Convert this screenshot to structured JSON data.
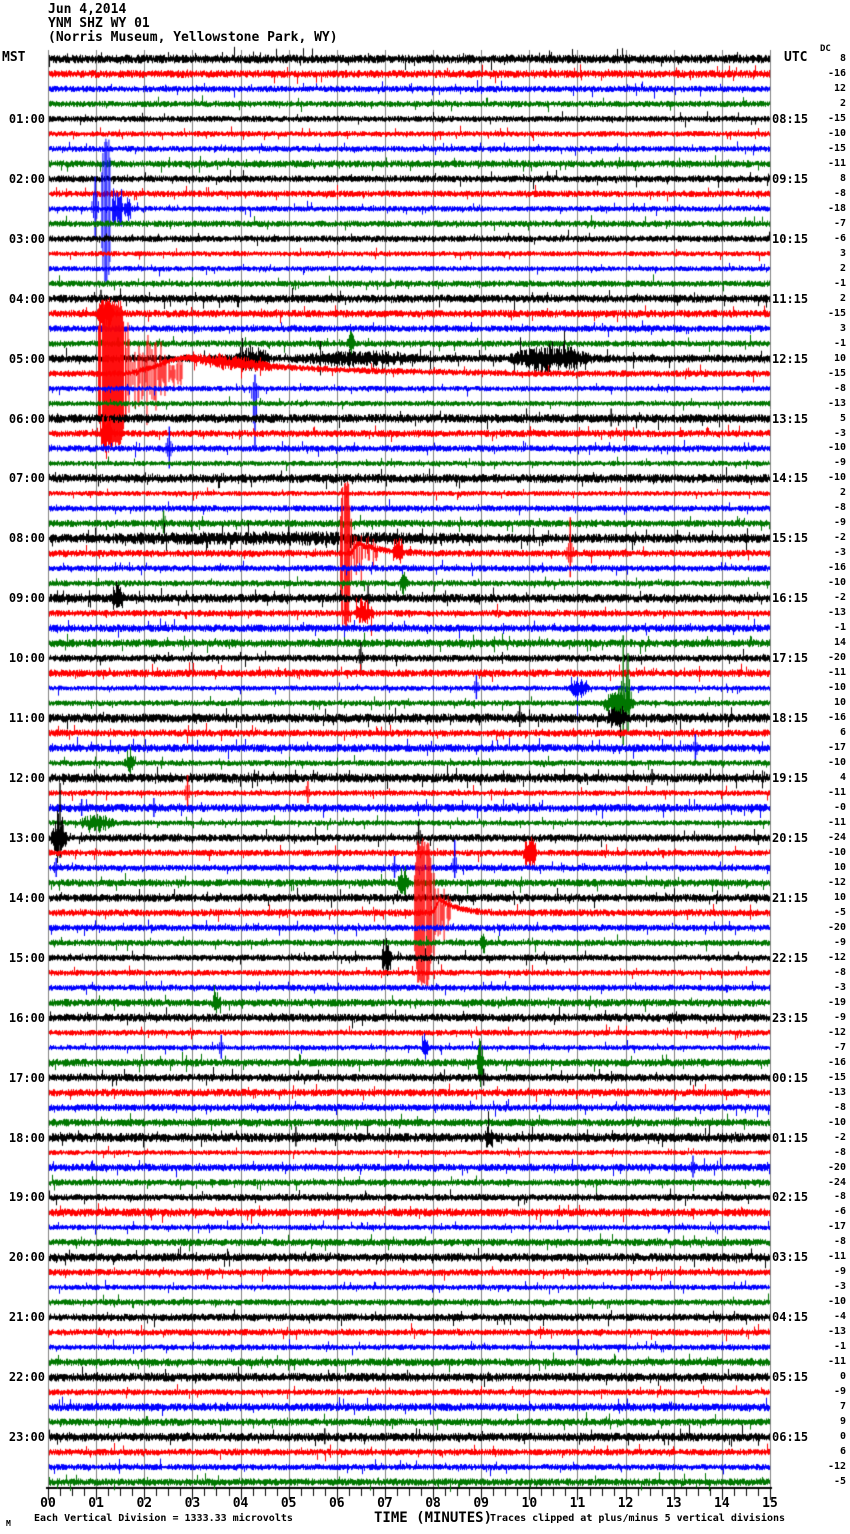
{
  "header": {
    "date": "Jun 4,2014",
    "station": "YNM SHZ WY 01",
    "location": "(Norris Museum, Yellowstone Park, WY)"
  },
  "axis": {
    "left": "MST",
    "right": "UTC",
    "dc": "DC",
    "x_label": "TIME (MINUTES)",
    "x_ticks": [
      "00",
      "01",
      "02",
      "03",
      "04",
      "05",
      "06",
      "07",
      "08",
      "09",
      "10",
      "11",
      "12",
      "13",
      "14",
      "15"
    ]
  },
  "footer": {
    "left": "Each Vertical Division = 1333.33 microvolts",
    "right": "Traces clipped at plus/minus 5 vertical divisions",
    "watermark": "M"
  },
  "chart_data": {
    "type": "line",
    "subtype": "helicorder-seismogram",
    "title": "Jun 4,2014 YNM SHZ WY 01 (Norris Museum, Yellowstone Park, WY)",
    "xlabel": "TIME (MINUTES)",
    "x_range_minutes": [
      0,
      15
    ],
    "minutes_per_line": 15,
    "lines_per_hour": 4,
    "trace_count": 96,
    "color_cycle": [
      "#000000",
      "#ff0000",
      "#0000ff",
      "#007700"
    ],
    "grid_color": "#808080",
    "clip_divisions": 5,
    "microvolts_per_division": "1333.33",
    "hour_marks": [
      {
        "trace": 4,
        "mst": "01:00",
        "utc": "08:15"
      },
      {
        "trace": 8,
        "mst": "02:00",
        "utc": "09:15"
      },
      {
        "trace": 12,
        "mst": "03:00",
        "utc": "10:15"
      },
      {
        "trace": 16,
        "mst": "04:00",
        "utc": "11:15"
      },
      {
        "trace": 20,
        "mst": "05:00",
        "utc": "12:15"
      },
      {
        "trace": 24,
        "mst": "06:00",
        "utc": "13:15"
      },
      {
        "trace": 28,
        "mst": "07:00",
        "utc": "14:15"
      },
      {
        "trace": 32,
        "mst": "08:00",
        "utc": "15:15"
      },
      {
        "trace": 36,
        "mst": "09:00",
        "utc": "16:15"
      },
      {
        "trace": 40,
        "mst": "10:00",
        "utc": "17:15"
      },
      {
        "trace": 44,
        "mst": "11:00",
        "utc": "18:15"
      },
      {
        "trace": 48,
        "mst": "12:00",
        "utc": "19:15"
      },
      {
        "trace": 52,
        "mst": "13:00",
        "utc": "20:15"
      },
      {
        "trace": 56,
        "mst": "14:00",
        "utc": "21:15"
      },
      {
        "trace": 60,
        "mst": "15:00",
        "utc": "22:15"
      },
      {
        "trace": 64,
        "mst": "16:00",
        "utc": "23:15"
      },
      {
        "trace": 68,
        "mst": "17:00",
        "utc": "00:15"
      },
      {
        "trace": 72,
        "mst": "18:00",
        "utc": "01:15"
      },
      {
        "trace": 76,
        "mst": "19:00",
        "utc": "02:15"
      },
      {
        "trace": 80,
        "mst": "20:00",
        "utc": "03:15"
      },
      {
        "trace": 84,
        "mst": "21:00",
        "utc": "04:15"
      },
      {
        "trace": 88,
        "mst": "22:00",
        "utc": "05:15"
      },
      {
        "trace": 92,
        "mst": "23:00",
        "utc": "06:15"
      }
    ],
    "dc_values": [
      "8",
      "-16",
      "12",
      "2",
      "-15",
      "-10",
      "-15",
      "-11",
      "8",
      "-8",
      "-18",
      "-7",
      "-6",
      "3",
      "2",
      "-1",
      "2",
      "-15",
      "3",
      "-1",
      "10",
      "-15",
      "-8",
      "-13",
      "5",
      "-3",
      "-10",
      "-9",
      "-10",
      "2",
      "-8",
      "-9",
      "-2",
      "-3",
      "-16",
      "-10",
      "-2",
      "-13",
      "-1",
      "14",
      "-20",
      "-11",
      "-10",
      "10",
      "-16",
      "6",
      "-17",
      "-10",
      "4",
      "-11",
      "-0",
      "-11",
      "-24",
      "-10",
      "10",
      "-12",
      "10",
      "-5",
      "-20",
      "-9",
      "-12",
      "-8",
      "-3",
      "-19",
      "-9",
      "-12",
      "-7",
      "-16",
      "-15",
      "-13",
      "-8",
      "-10",
      "-2",
      "-8",
      "-20",
      "-24",
      "-8",
      "-6",
      "-17",
      "-8",
      "-11",
      "-9",
      "-3",
      "-10",
      "-4",
      "-13",
      "-1",
      "-11",
      "0",
      "-9",
      "7",
      "9",
      "0",
      "6",
      "-12",
      "-5"
    ],
    "events": [
      {
        "t": "spike",
        "i": 10,
        "m": 0.98,
        "u": 32,
        "d": 30
      },
      {
        "t": "clip",
        "i": 10,
        "m0": 1.12,
        "m1": 1.3
      },
      {
        "t": "decay",
        "i": 10,
        "m0": 1.3,
        "m1": 1.8,
        "a0": 25,
        "a1": 8
      },
      {
        "t": "spike",
        "i": 16,
        "m": 1.1,
        "u": 9,
        "d": 4
      },
      {
        "t": "burst",
        "i": 17,
        "m0": 1.0,
        "m1": 1.6,
        "a": 12
      },
      {
        "t": "clip",
        "i": 21,
        "m0": 1.03,
        "m1": 1.62
      },
      {
        "t": "decay",
        "i": 21,
        "m0": 1.62,
        "m1": 2.8,
        "a0": 58,
        "a1": 14
      },
      {
        "t": "coda",
        "i": 21,
        "m0": 1.55,
        "mp": 2.9,
        "m2": 9.5,
        "a": 16
      },
      {
        "t": "burst",
        "i": 21,
        "m0": 2.8,
        "m1": 6.0,
        "a": 4
      },
      {
        "t": "burst",
        "i": 20,
        "m0": 3.85,
        "m1": 5.1,
        "a": 8
      },
      {
        "t": "burst",
        "i": 20,
        "m0": 5.1,
        "m1": 9.5,
        "a": 4
      },
      {
        "t": "burst",
        "i": 20,
        "m0": 9.5,
        "m1": 12.5,
        "a": 9
      },
      {
        "t": "spike",
        "i": 22,
        "m": 4.3,
        "u": 14,
        "d": 62
      },
      {
        "t": "spike",
        "i": 24,
        "m": 11.7,
        "u": 10,
        "d": 8
      },
      {
        "t": "burst",
        "i": 25,
        "m0": 1.05,
        "m1": 1.5,
        "a": 18
      },
      {
        "t": "spike",
        "i": 26,
        "m": 2.52,
        "u": 22,
        "d": 20
      },
      {
        "t": "burst",
        "i": 19,
        "m0": 6.2,
        "m1": 6.5,
        "a": 8
      },
      {
        "t": "spike",
        "i": 31,
        "m": 2.4,
        "u": 13,
        "d": 10
      },
      {
        "t": "burst",
        "i": 32,
        "m0": 0.2,
        "m1": 14.8,
        "a": 2
      },
      {
        "t": "clip",
        "i": 33,
        "m0": 6.08,
        "m1": 6.28
      },
      {
        "t": "decay",
        "i": 33,
        "m0": 6.28,
        "m1": 6.9,
        "a0": 30,
        "a1": 10
      },
      {
        "t": "coda",
        "i": 33,
        "m0": 6.25,
        "mp": 6.45,
        "m2": 7.8,
        "a": 10
      },
      {
        "t": "burst",
        "i": 33,
        "m0": 7.15,
        "m1": 7.55,
        "a": 13
      },
      {
        "t": "spike",
        "i": 33,
        "m": 10.85,
        "u": 36,
        "d": 24
      },
      {
        "t": "burst",
        "i": 35,
        "m0": 7.3,
        "m1": 7.6,
        "a": 11
      },
      {
        "t": "burst",
        "i": 36,
        "m0": 1.3,
        "m1": 1.75,
        "a": 11
      },
      {
        "t": "spike",
        "i": 36,
        "m": 6.65,
        "u": 13,
        "d": 11
      },
      {
        "t": "burst",
        "i": 37,
        "m0": 6.35,
        "m1": 7.05,
        "a": 10
      },
      {
        "t": "spike",
        "i": 40,
        "m": 6.5,
        "u": 16,
        "d": 13
      },
      {
        "t": "spike",
        "i": 42,
        "m": 8.9,
        "u": 13,
        "d": 11
      },
      {
        "t": "burst",
        "i": 42,
        "m0": 10.8,
        "m1": 11.5,
        "a": 8
      },
      {
        "t": "burst",
        "i": 43,
        "m0": 11.5,
        "m1": 12.6,
        "a": 13
      },
      {
        "t": "spike",
        "i": 43,
        "m": 11.95,
        "u": 68,
        "d": 42
      },
      {
        "t": "spike",
        "i": 43,
        "m": 12.05,
        "u": 50,
        "d": 30
      },
      {
        "t": "burst",
        "i": 44,
        "m0": 11.6,
        "m1": 12.3,
        "a": 8
      },
      {
        "t": "spike",
        "i": 44,
        "m": 9.8,
        "u": 12,
        "d": 9
      },
      {
        "t": "spike",
        "i": 46,
        "m": 13.45,
        "u": 14,
        "d": 12
      },
      {
        "t": "burst",
        "i": 47,
        "m0": 1.55,
        "m1": 1.95,
        "a": 11
      },
      {
        "t": "spike",
        "i": 48,
        "m": 12.55,
        "u": 9,
        "d": 7
      },
      {
        "t": "spike",
        "i": 49,
        "m": 2.9,
        "u": 18,
        "d": 14
      },
      {
        "t": "spike",
        "i": 49,
        "m": 5.4,
        "u": 12,
        "d": 10
      },
      {
        "t": "spike",
        "i": 50,
        "m": 0.7,
        "u": 9,
        "d": 8
      },
      {
        "t": "spike",
        "i": 50,
        "m": 2.2,
        "u": 10,
        "d": 9
      },
      {
        "t": "burst",
        "i": 51,
        "m0": 0.6,
        "m1": 1.9,
        "a": 6
      },
      {
        "t": "burst",
        "i": 52,
        "m0": 0.05,
        "m1": 0.6,
        "a": 18
      },
      {
        "t": "spike",
        "i": 52,
        "m": 0.25,
        "u": 55,
        "d": 20
      },
      {
        "t": "spike",
        "i": 52,
        "m": 7.7,
        "u": 16,
        "d": 12
      },
      {
        "t": "burst",
        "i": 53,
        "m0": 9.85,
        "m1": 10.35,
        "a": 15
      },
      {
        "t": "spike",
        "i": 54,
        "m": 0.17,
        "u": 10,
        "d": 9
      },
      {
        "t": "spike",
        "i": 54,
        "m": 7.2,
        "u": 12,
        "d": 10
      },
      {
        "t": "spike",
        "i": 54,
        "m": 8.45,
        "u": 28,
        "d": 10
      },
      {
        "t": "burst",
        "i": 55,
        "m0": 7.25,
        "m1": 7.65,
        "a": 11
      },
      {
        "t": "clip",
        "i": 57,
        "m0": 7.62,
        "m1": 7.98
      },
      {
        "t": "decay",
        "i": 57,
        "m0": 7.98,
        "m1": 8.4,
        "a0": 45,
        "a1": 14
      },
      {
        "t": "coda",
        "i": 57,
        "m0": 7.95,
        "mp": 8.15,
        "m2": 9.2,
        "a": 13
      },
      {
        "t": "burst",
        "i": 59,
        "m0": 8.95,
        "m1": 9.2,
        "a": 9
      },
      {
        "t": "burst",
        "i": 60,
        "m0": 6.9,
        "m1": 7.3,
        "a": 16
      },
      {
        "t": "burst",
        "i": 63,
        "m0": 3.4,
        "m1": 3.7,
        "a": 8
      },
      {
        "t": "spike",
        "i": 66,
        "m": 3.6,
        "u": 13,
        "d": 11
      },
      {
        "t": "burst",
        "i": 66,
        "m0": 7.75,
        "m1": 8.0,
        "a": 9
      },
      {
        "t": "burst",
        "i": 67,
        "m0": 8.9,
        "m1": 9.15,
        "a": 15
      },
      {
        "t": "spike",
        "i": 68,
        "m": 9.05,
        "u": 9,
        "d": 8
      },
      {
        "t": "spike",
        "i": 72,
        "m": 5.15,
        "u": 11,
        "d": 9
      },
      {
        "t": "burst",
        "i": 72,
        "m0": 9.05,
        "m1": 9.35,
        "a": 10
      },
      {
        "t": "spike",
        "i": 74,
        "m": 13.4,
        "u": 12,
        "d": 10
      },
      {
        "t": "spike",
        "i": 92,
        "m": 5.75,
        "u": 9,
        "d": 7
      }
    ]
  }
}
